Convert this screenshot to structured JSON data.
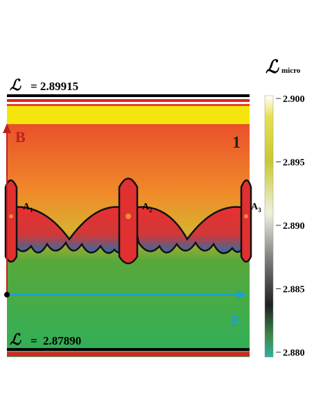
{
  "figure": {
    "top_level": {
      "symbol": "ℒ",
      "text": "= 2.89915"
    },
    "bottom_level": {
      "symbol": "ℒ",
      "text": "2.87890"
    },
    "bottom_eq": "=",
    "panel_number": "1",
    "axis_b": "B",
    "axis_e": "E",
    "points": [
      {
        "letter": "A",
        "sub": "1"
      },
      {
        "letter": "A",
        "sub": "2"
      },
      {
        "letter": "A",
        "sub": "3"
      }
    ],
    "colorbar": {
      "symbol": "ℒ",
      "sub": "micro",
      "ticks": [
        "2.900",
        "2.895",
        "2.890",
        "2.885",
        "2.880"
      ]
    }
  }
}
